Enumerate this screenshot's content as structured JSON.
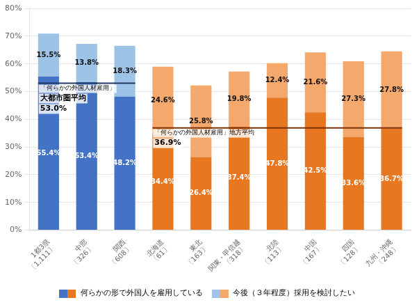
{
  "chart_data": {
    "type": "bar",
    "stacked": true,
    "categories": [
      "1都3県\n〔1,111〕",
      "中部\n〔326〕",
      "関西\n〔608〕",
      "北海道\n〔61〕",
      "東北\n〔163〕",
      "関東・甲信越\n〔318〕",
      "北陸\n〔113〕",
      "中国\n〔167〕",
      "四国\n〔128〕",
      "九州・沖縄\n〔248〕"
    ],
    "series": [
      {
        "name": "何らかの形で外国人を雇用している",
        "colors": [
          "#4472C4",
          "#4472C4",
          "#4472C4",
          "#E87722",
          "#E87722",
          "#E87722",
          "#E87722",
          "#E87722",
          "#E87722",
          "#E87722"
        ],
        "values": [
          55.4,
          53.4,
          48.2,
          34.4,
          26.4,
          37.4,
          47.8,
          42.5,
          33.6,
          36.7
        ],
        "value_labels": [
          "55.4%",
          "53.4%",
          "48.2%",
          "34.4%",
          "26.4%",
          "37.4%",
          "47.8%",
          "42.5%",
          "33.6%",
          "36.7%"
        ]
      },
      {
        "name": "今後（３年程度）採用を検討したい",
        "colors": [
          "#9DC3E6",
          "#9DC3E6",
          "#9DC3E6",
          "#F5A86C",
          "#F5A86C",
          "#F5A86C",
          "#F5A86C",
          "#F5A86C",
          "#F5A86C",
          "#F5A86C"
        ],
        "values": [
          15.5,
          13.8,
          18.3,
          24.6,
          25.8,
          19.8,
          12.4,
          21.6,
          27.3,
          27.8
        ],
        "value_labels": [
          "15.5%",
          "13.8%",
          "18.3%",
          "24.6%",
          "25.8%",
          "19.8%",
          "12.4%",
          "21.6%",
          "27.3%",
          "27.8%"
        ]
      }
    ],
    "ylim": [
      0,
      80
    ],
    "yticks": [
      {
        "value": 0,
        "label": "0%"
      },
      {
        "value": 10,
        "label": "10%"
      },
      {
        "value": 20,
        "label": "20%"
      },
      {
        "value": 30,
        "label": "30%"
      },
      {
        "value": 40,
        "label": "40%"
      },
      {
        "value": 50,
        "label": "50%"
      },
      {
        "value": 60,
        "label": "60%"
      },
      {
        "value": 70,
        "label": "70%"
      },
      {
        "value": 80,
        "label": "80%"
      }
    ],
    "grid": true,
    "legend": "bottom",
    "data_labels": true,
    "lines": [
      {
        "value": 53.0,
        "color": "#1F3864",
        "start": "1都3県\n〔1,111〕",
        "end": "関西\n〔608〕",
        "labels": [
          "「何らかの外国人材雇用」",
          "大都市圏平均",
          "53.0%"
        ]
      },
      {
        "value": 36.9,
        "color": "#7B3000",
        "start": "北海道\n〔61〕",
        "end": "九州・沖縄\n〔248〕",
        "labels": [
          "「何らかの外国人材雇用」地方平均",
          "36.9%"
        ]
      }
    ]
  }
}
